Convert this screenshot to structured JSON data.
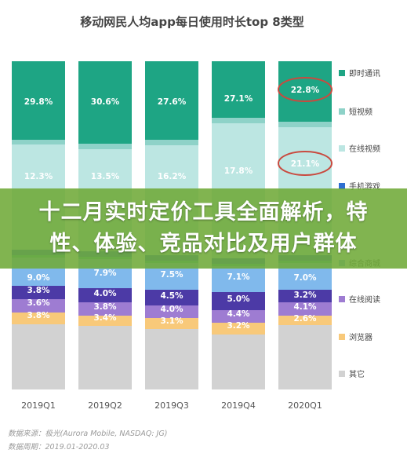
{
  "chart_data": {
    "type": "bar",
    "stacked": true,
    "title": "移动网民人均app每日使用时长top 8类型",
    "categories": [
      "2019Q1",
      "2019Q2",
      "2019Q3",
      "2019Q4",
      "2020Q1"
    ],
    "series": [
      {
        "name": "其它",
        "color": "#d2d2d2",
        "values": [
          null,
          null,
          null,
          null,
          null
        ]
      },
      {
        "name": "浏览器",
        "color": "#f8c97a",
        "values": [
          3.8,
          3.4,
          3.1,
          3.2,
          2.6
        ]
      },
      {
        "name": "在线阅读",
        "color": "#9e7cd2",
        "values": [
          3.6,
          3.8,
          4.0,
          4.4,
          4.1
        ]
      },
      {
        "name": "",
        "color": "#4c3aa6",
        "values": [
          3.8,
          4.0,
          4.5,
          5.0,
          3.2
        ]
      },
      {
        "name": "综合商城",
        "color": "#80b9ec",
        "values": [
          9.0,
          7.9,
          7.5,
          7.1,
          7.0
        ]
      },
      {
        "name": "",
        "color": "#3fb0ae",
        "values": [
          null,
          null,
          null,
          null,
          null
        ]
      },
      {
        "name": "手机游戏",
        "color": "#2f6fd2",
        "values": [
          null,
          null,
          null,
          null,
          null
        ]
      },
      {
        "name": "在线视频",
        "color": "#bce6e2",
        "values": [
          12.3,
          13.5,
          16.2,
          17.8,
          21.1
        ]
      },
      {
        "name": "短视频",
        "color": "#8ed2c8",
        "values": [
          null,
          null,
          null,
          null,
          null
        ]
      },
      {
        "name": "即时通讯",
        "color": "#1ea584",
        "values": [
          29.8,
          30.6,
          27.6,
          27.1,
          22.8
        ]
      }
    ],
    "highlighted_values": [
      "22.8%",
      "21.1%"
    ],
    "highlight_color": "#c94a3f",
    "value_suffix": "%"
  },
  "banner": {
    "line1": "十二月实时定价工具全面解析，特",
    "line2": "性、体验、竞品对比及用户群体"
  },
  "footer": {
    "source": "数据来源：极光(Aurora Mobile, NASDAQ: JG)",
    "period": "数据周期：2019.01-2020.03"
  },
  "legend": [
    {
      "label": "即时通讯",
      "color": "#1ea584"
    },
    {
      "label": "短视频",
      "color": "#8ed2c8"
    },
    {
      "label": "在线视频",
      "color": "#bce6e2"
    },
    {
      "label": "手机游戏",
      "color": "#2f6fd2"
    },
    {
      "label": "综合商城",
      "color": "#80b9ec"
    },
    {
      "label": "在线阅读",
      "color": "#9e7cd2"
    },
    {
      "label": "浏览器",
      "color": "#f8c97a"
    },
    {
      "label": "其它",
      "color": "#d2d2d2"
    }
  ]
}
